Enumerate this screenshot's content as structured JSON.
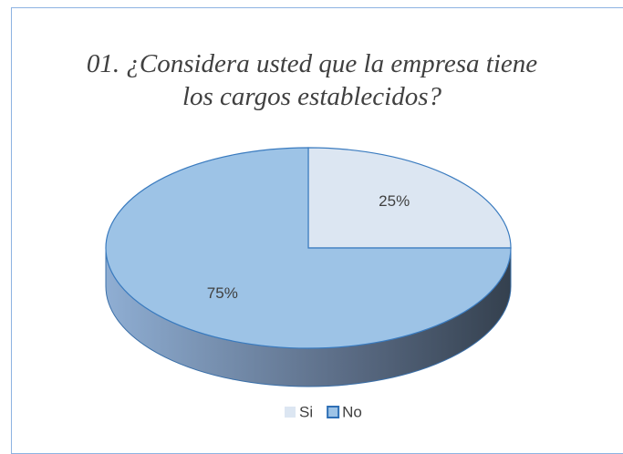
{
  "chart_data": {
    "type": "pie",
    "title": "01. ¿Considera usted que la empresa tiene los cargos establecidos?",
    "categories": [
      "Si",
      "No"
    ],
    "values": [
      25,
      75
    ],
    "value_labels": [
      "25%",
      "75%"
    ],
    "colors": [
      "#dce6f2",
      "#9dc3e6"
    ],
    "legend": "bottom"
  }
}
